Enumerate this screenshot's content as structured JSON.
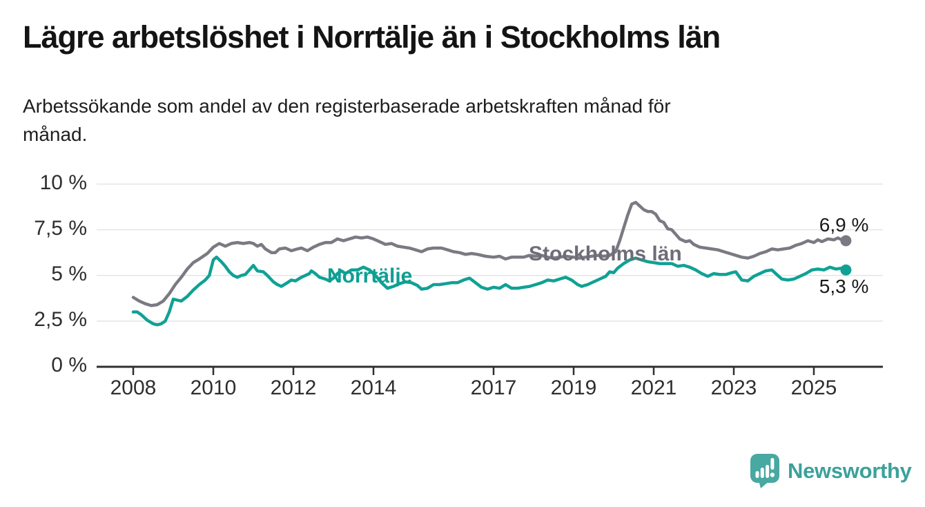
{
  "header": {
    "title": "Lägre arbetslöshet i Norrtälje än i Stockholms län",
    "subtitle": "Arbetssökande som andel av den registerbaserade arbetskraften månad för månad."
  },
  "chart_data": {
    "type": "line",
    "title": "Lägre arbetslöshet i Norrtälje än i Stockholms län",
    "xlabel": "",
    "ylabel": "",
    "unit": "%",
    "grid": true,
    "x_axis": {
      "range": [
        2007.1,
        2026.6
      ],
      "ticks": [
        2008,
        2010,
        2012,
        2014,
        2017,
        2019,
        2021,
        2023,
        2025
      ],
      "tick_labels": [
        "2008",
        "2010",
        "2012",
        "2014",
        "2017",
        "2019",
        "2021",
        "2023",
        "2025"
      ]
    },
    "y_axis": {
      "range": [
        0,
        10
      ],
      "ticks": [
        0,
        2.5,
        5,
        7.5,
        10
      ],
      "tick_labels": [
        "0 %",
        "2,5 %",
        "5 %",
        "7,5 %",
        "10 %"
      ]
    },
    "series": [
      {
        "name": "Stockholms län",
        "color": "#7b7a83",
        "label_color": "#6e6d77",
        "end_label": "6,9 %",
        "end_value": 6.9,
        "points": [
          [
            2008.0,
            3.8
          ],
          [
            2008.15,
            3.6
          ],
          [
            2008.3,
            3.45
          ],
          [
            2008.45,
            3.35
          ],
          [
            2008.6,
            3.4
          ],
          [
            2008.75,
            3.6
          ],
          [
            2008.9,
            4.0
          ],
          [
            2009.05,
            4.5
          ],
          [
            2009.2,
            4.9
          ],
          [
            2009.35,
            5.35
          ],
          [
            2009.5,
            5.7
          ],
          [
            2009.65,
            5.9
          ],
          [
            2009.85,
            6.2
          ],
          [
            2010.0,
            6.55
          ],
          [
            2010.15,
            6.75
          ],
          [
            2010.3,
            6.6
          ],
          [
            2010.45,
            6.75
          ],
          [
            2010.6,
            6.8
          ],
          [
            2010.75,
            6.75
          ],
          [
            2010.9,
            6.8
          ],
          [
            2011.0,
            6.75
          ],
          [
            2011.1,
            6.6
          ],
          [
            2011.2,
            6.7
          ],
          [
            2011.3,
            6.45
          ],
          [
            2011.45,
            6.25
          ],
          [
            2011.55,
            6.25
          ],
          [
            2011.65,
            6.45
          ],
          [
            2011.8,
            6.5
          ],
          [
            2011.95,
            6.35
          ],
          [
            2012.1,
            6.45
          ],
          [
            2012.2,
            6.5
          ],
          [
            2012.35,
            6.35
          ],
          [
            2012.5,
            6.55
          ],
          [
            2012.65,
            6.7
          ],
          [
            2012.8,
            6.8
          ],
          [
            2012.95,
            6.8
          ],
          [
            2013.1,
            7.0
          ],
          [
            2013.25,
            6.9
          ],
          [
            2013.4,
            7.0
          ],
          [
            2013.55,
            7.1
          ],
          [
            2013.7,
            7.05
          ],
          [
            2013.85,
            7.1
          ],
          [
            2014.0,
            7.0
          ],
          [
            2014.15,
            6.85
          ],
          [
            2014.3,
            6.7
          ],
          [
            2014.45,
            6.75
          ],
          [
            2014.6,
            6.6
          ],
          [
            2014.75,
            6.55
          ],
          [
            2014.9,
            6.5
          ],
          [
            2015.05,
            6.4
          ],
          [
            2015.2,
            6.3
          ],
          [
            2015.35,
            6.45
          ],
          [
            2015.5,
            6.5
          ],
          [
            2015.7,
            6.5
          ],
          [
            2015.85,
            6.4
          ],
          [
            2016.0,
            6.3
          ],
          [
            2016.15,
            6.25
          ],
          [
            2016.3,
            6.15
          ],
          [
            2016.45,
            6.2
          ],
          [
            2016.6,
            6.15
          ],
          [
            2016.8,
            6.05
          ],
          [
            2017.0,
            6.0
          ],
          [
            2017.15,
            6.05
          ],
          [
            2017.3,
            5.9
          ],
          [
            2017.45,
            6.0
          ],
          [
            2017.6,
            6.0
          ],
          [
            2017.75,
            6.0
          ],
          [
            2017.9,
            6.1
          ],
          [
            2018.05,
            6.05
          ],
          [
            2018.2,
            6.1
          ],
          [
            2018.35,
            6.0
          ],
          [
            2018.5,
            5.95
          ],
          [
            2018.65,
            6.0
          ],
          [
            2018.8,
            6.05
          ],
          [
            2019.0,
            6.0
          ],
          [
            2019.15,
            5.95
          ],
          [
            2019.3,
            6.0
          ],
          [
            2019.45,
            6.05
          ],
          [
            2019.6,
            6.1
          ],
          [
            2019.75,
            6.05
          ],
          [
            2019.9,
            6.1
          ],
          [
            2020.05,
            6.3
          ],
          [
            2020.15,
            6.9
          ],
          [
            2020.25,
            7.6
          ],
          [
            2020.35,
            8.3
          ],
          [
            2020.45,
            8.9
          ],
          [
            2020.55,
            9.0
          ],
          [
            2020.65,
            8.8
          ],
          [
            2020.75,
            8.6
          ],
          [
            2020.85,
            8.5
          ],
          [
            2020.95,
            8.5
          ],
          [
            2021.05,
            8.35
          ],
          [
            2021.15,
            8.0
          ],
          [
            2021.25,
            7.9
          ],
          [
            2021.35,
            7.55
          ],
          [
            2021.45,
            7.5
          ],
          [
            2021.55,
            7.25
          ],
          [
            2021.65,
            7.0
          ],
          [
            2021.8,
            6.85
          ],
          [
            2021.9,
            6.9
          ],
          [
            2022.0,
            6.7
          ],
          [
            2022.15,
            6.55
          ],
          [
            2022.3,
            6.5
          ],
          [
            2022.45,
            6.45
          ],
          [
            2022.6,
            6.4
          ],
          [
            2022.75,
            6.3
          ],
          [
            2022.9,
            6.2
          ],
          [
            2023.05,
            6.1
          ],
          [
            2023.2,
            6.0
          ],
          [
            2023.35,
            5.95
          ],
          [
            2023.5,
            6.05
          ],
          [
            2023.65,
            6.2
          ],
          [
            2023.8,
            6.3
          ],
          [
            2023.95,
            6.45
          ],
          [
            2024.1,
            6.4
          ],
          [
            2024.25,
            6.45
          ],
          [
            2024.4,
            6.5
          ],
          [
            2024.55,
            6.65
          ],
          [
            2024.7,
            6.75
          ],
          [
            2024.85,
            6.9
          ],
          [
            2025.0,
            6.8
          ],
          [
            2025.1,
            6.95
          ],
          [
            2025.2,
            6.85
          ],
          [
            2025.35,
            7.0
          ],
          [
            2025.5,
            6.95
          ],
          [
            2025.6,
            7.05
          ],
          [
            2025.7,
            6.95
          ],
          [
            2025.8,
            6.9
          ]
        ]
      },
      {
        "name": "Norrtälje",
        "color": "#10a195",
        "label_color": "#0e9e92",
        "end_label": "5,3 %",
        "end_value": 5.3,
        "points": [
          [
            2008.0,
            3.0
          ],
          [
            2008.1,
            3.0
          ],
          [
            2008.2,
            2.85
          ],
          [
            2008.35,
            2.55
          ],
          [
            2008.5,
            2.35
          ],
          [
            2008.6,
            2.3
          ],
          [
            2008.7,
            2.35
          ],
          [
            2008.8,
            2.5
          ],
          [
            2008.9,
            3.0
          ],
          [
            2009.0,
            3.7
          ],
          [
            2009.1,
            3.65
          ],
          [
            2009.2,
            3.6
          ],
          [
            2009.35,
            3.85
          ],
          [
            2009.5,
            4.2
          ],
          [
            2009.65,
            4.5
          ],
          [
            2009.8,
            4.75
          ],
          [
            2009.9,
            5.0
          ],
          [
            2010.0,
            5.85
          ],
          [
            2010.08,
            6.0
          ],
          [
            2010.2,
            5.75
          ],
          [
            2010.3,
            5.5
          ],
          [
            2010.4,
            5.2
          ],
          [
            2010.5,
            5.0
          ],
          [
            2010.6,
            4.9
          ],
          [
            2010.7,
            5.0
          ],
          [
            2010.8,
            5.05
          ],
          [
            2010.9,
            5.3
          ],
          [
            2011.0,
            5.55
          ],
          [
            2011.1,
            5.25
          ],
          [
            2011.25,
            5.2
          ],
          [
            2011.35,
            5.0
          ],
          [
            2011.5,
            4.65
          ],
          [
            2011.6,
            4.5
          ],
          [
            2011.7,
            4.4
          ],
          [
            2011.85,
            4.6
          ],
          [
            2011.95,
            4.75
          ],
          [
            2012.05,
            4.7
          ],
          [
            2012.2,
            4.9
          ],
          [
            2012.3,
            5.0
          ],
          [
            2012.4,
            5.1
          ],
          [
            2012.45,
            5.25
          ],
          [
            2012.55,
            5.1
          ],
          [
            2012.65,
            4.9
          ],
          [
            2012.8,
            4.8
          ],
          [
            2012.9,
            4.7
          ],
          [
            2013.0,
            4.85
          ],
          [
            2013.1,
            5.1
          ],
          [
            2013.2,
            5.25
          ],
          [
            2013.3,
            5.1
          ],
          [
            2013.45,
            5.3
          ],
          [
            2013.6,
            5.3
          ],
          [
            2013.75,
            5.45
          ],
          [
            2013.9,
            5.3
          ],
          [
            2014.05,
            5.0
          ],
          [
            2014.2,
            4.6
          ],
          [
            2014.35,
            4.3
          ],
          [
            2014.5,
            4.4
          ],
          [
            2014.65,
            4.55
          ],
          [
            2014.8,
            4.65
          ],
          [
            2014.95,
            4.6
          ],
          [
            2015.1,
            4.45
          ],
          [
            2015.2,
            4.25
          ],
          [
            2015.35,
            4.3
          ],
          [
            2015.5,
            4.5
          ],
          [
            2015.65,
            4.5
          ],
          [
            2015.8,
            4.55
          ],
          [
            2015.95,
            4.6
          ],
          [
            2016.1,
            4.6
          ],
          [
            2016.25,
            4.75
          ],
          [
            2016.4,
            4.85
          ],
          [
            2016.55,
            4.6
          ],
          [
            2016.7,
            4.35
          ],
          [
            2016.85,
            4.25
          ],
          [
            2017.0,
            4.35
          ],
          [
            2017.15,
            4.3
          ],
          [
            2017.3,
            4.5
          ],
          [
            2017.45,
            4.3
          ],
          [
            2017.6,
            4.3
          ],
          [
            2017.75,
            4.35
          ],
          [
            2017.9,
            4.4
          ],
          [
            2018.05,
            4.5
          ],
          [
            2018.2,
            4.6
          ],
          [
            2018.35,
            4.75
          ],
          [
            2018.5,
            4.7
          ],
          [
            2018.65,
            4.8
          ],
          [
            2018.8,
            4.9
          ],
          [
            2018.95,
            4.75
          ],
          [
            2019.1,
            4.5
          ],
          [
            2019.2,
            4.4
          ],
          [
            2019.35,
            4.5
          ],
          [
            2019.5,
            4.65
          ],
          [
            2019.65,
            4.8
          ],
          [
            2019.8,
            4.95
          ],
          [
            2019.9,
            5.2
          ],
          [
            2020.0,
            5.15
          ],
          [
            2020.1,
            5.4
          ],
          [
            2020.25,
            5.65
          ],
          [
            2020.4,
            5.85
          ],
          [
            2020.55,
            5.95
          ],
          [
            2020.7,
            5.85
          ],
          [
            2020.85,
            5.75
          ],
          [
            2021.0,
            5.7
          ],
          [
            2021.15,
            5.65
          ],
          [
            2021.3,
            5.65
          ],
          [
            2021.45,
            5.65
          ],
          [
            2021.6,
            5.5
          ],
          [
            2021.75,
            5.55
          ],
          [
            2021.9,
            5.45
          ],
          [
            2022.05,
            5.3
          ],
          [
            2022.2,
            5.1
          ],
          [
            2022.35,
            4.95
          ],
          [
            2022.5,
            5.1
          ],
          [
            2022.65,
            5.05
          ],
          [
            2022.8,
            5.05
          ],
          [
            2022.95,
            5.15
          ],
          [
            2023.05,
            5.2
          ],
          [
            2023.2,
            4.75
          ],
          [
            2023.35,
            4.7
          ],
          [
            2023.5,
            4.95
          ],
          [
            2023.65,
            5.1
          ],
          [
            2023.8,
            5.25
          ],
          [
            2023.95,
            5.3
          ],
          [
            2024.1,
            5.0
          ],
          [
            2024.2,
            4.8
          ],
          [
            2024.35,
            4.75
          ],
          [
            2024.5,
            4.8
          ],
          [
            2024.65,
            4.95
          ],
          [
            2024.8,
            5.1
          ],
          [
            2024.95,
            5.3
          ],
          [
            2025.1,
            5.35
          ],
          [
            2025.25,
            5.3
          ],
          [
            2025.4,
            5.45
          ],
          [
            2025.55,
            5.35
          ],
          [
            2025.7,
            5.4
          ],
          [
            2025.8,
            5.3
          ]
        ]
      }
    ],
    "legend": "inline line labels",
    "annotations": [
      "Stockholms län",
      "Norrtälje",
      "6,9 %",
      "5,3 %"
    ]
  },
  "branding": {
    "logo_text": "Newsworthy",
    "logo_icon": "bar-chart-speech-bubble-icon",
    "logo_color": "#48a8a2"
  },
  "colors": {
    "background": "#ffffff",
    "stockholm_line": "#7b7a83",
    "norrtalje_line": "#10a195",
    "gridline": "#e4e4e4",
    "axis": "#2f2f2f"
  }
}
